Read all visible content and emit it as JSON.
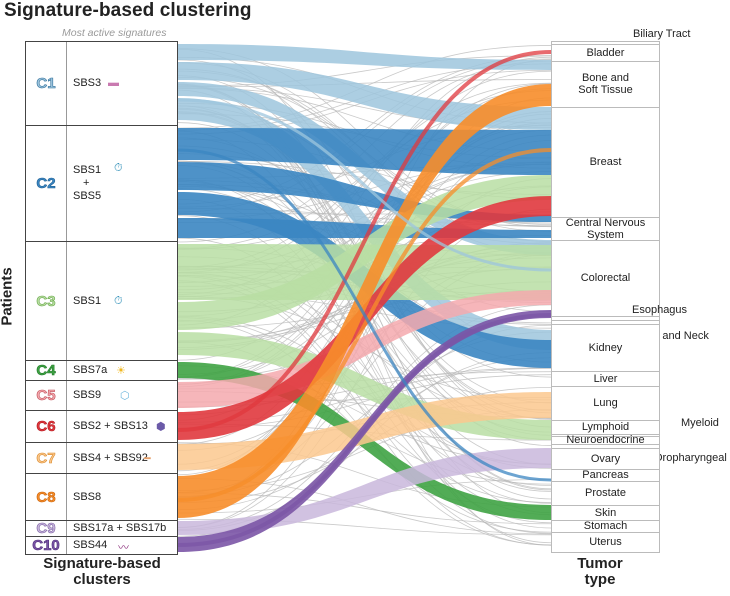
{
  "title": "Signature-based clustering",
  "subtitle": "Most active signatures",
  "axis": {
    "left_title": "Patients",
    "bottom_left_line1": "Signature-based",
    "bottom_left_line2": "clusters",
    "bottom_right_line1": "Tumor",
    "bottom_right_line2": "type"
  },
  "clusters": [
    {
      "id": "C1",
      "signature": "SBS3",
      "color": "#9ec5dd",
      "dark": "#2f6f9a",
      "icon": "chromosome-icon"
    },
    {
      "id": "C2",
      "signature_line1": "SBS1",
      "signature_plus": "+",
      "signature_line2": "SBS5",
      "color": "#3b86c2",
      "dark": "#1d5f93",
      "icon": "clock-person-icon"
    },
    {
      "id": "C3",
      "signature": "SBS1",
      "color": "#b9dea3",
      "dark": "#6aa94c",
      "icon": "clock-icon"
    },
    {
      "id": "C4",
      "signature": "SBS7a",
      "color": "#3fa344",
      "dark": "#1f7a27",
      "icon": "sun-icon"
    },
    {
      "id": "C5",
      "signature": "SBS9",
      "color": "#f4a9ae",
      "dark": "#c0505a",
      "icon": "polymerase-icon"
    },
    {
      "id": "C6",
      "signature": "SBS2 + SBS13",
      "color": "#e0383e",
      "dark": "#b1161d",
      "icon": "apobec-icon"
    },
    {
      "id": "C7",
      "signature": "SBS4 + SBS92",
      "color": "#fcc88e",
      "dark": "#d98a2b",
      "icon": "cigarette-icon"
    },
    {
      "id": "C8",
      "signature": "SBS8",
      "color": "#f78d2a",
      "dark": "#c8620a",
      "icon": ""
    },
    {
      "id": "C9",
      "signature": "SBS17a + SBS17b",
      "color": "#c9b7dc",
      "dark": "#7a5fa3",
      "icon": ""
    },
    {
      "id": "C10",
      "signature": "SBS44",
      "color": "#7b55a6",
      "dark": "#4d2c7a",
      "icon": "dna-icon"
    }
  ],
  "tumors": [
    {
      "name": "Biliary Tract",
      "external": true
    },
    {
      "name": "Bladder"
    },
    {
      "name": "Bone and",
      "name2": "Soft Tissue"
    },
    {
      "name": "Breast"
    },
    {
      "name": "Central Nervous",
      "name2": "System"
    },
    {
      "name": "Colorectal"
    },
    {
      "name": "Esophagus",
      "external": true
    },
    {
      "name": "Head and Neck",
      "external": true
    },
    {
      "name": "Kidney"
    },
    {
      "name": "Liver"
    },
    {
      "name": "Lung"
    },
    {
      "name": "Lymphoid"
    },
    {
      "name": "Myeloid",
      "external": true
    },
    {
      "name": "Neuroendocrine"
    },
    {
      "name": "Oropharyngeal",
      "external": true
    },
    {
      "name": "Ovary"
    },
    {
      "name": "Pancreas"
    },
    {
      "name": "Prostate"
    },
    {
      "name": "Skin"
    },
    {
      "name": "Stomach"
    },
    {
      "name": "Uterus"
    }
  ],
  "colors": {
    "flow_gray": "#b8b8b8",
    "box_border": "#444444"
  }
}
